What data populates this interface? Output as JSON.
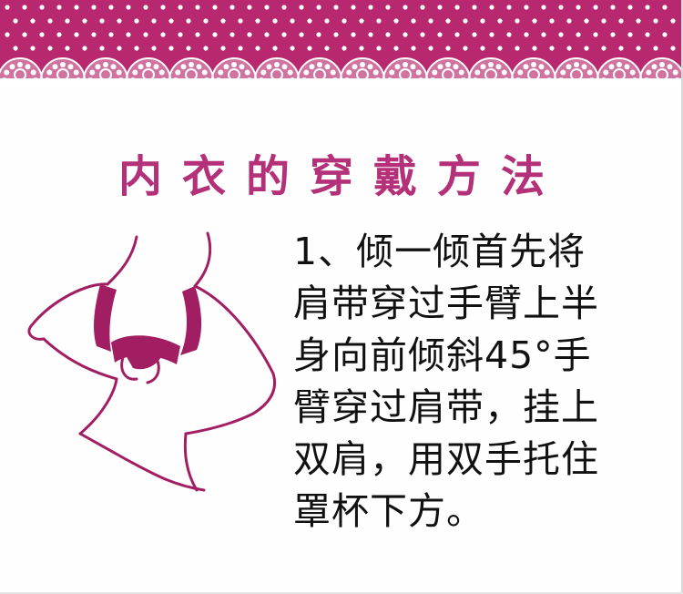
{
  "colors": {
    "banner": "#b8286f",
    "dots": "#ffffff",
    "lace": "#ffffff",
    "heading": "#b4317a",
    "illustration": "#a21e63",
    "body_text": "#111111"
  },
  "heading": {
    "title": "内衣的穿戴方法"
  },
  "content": {
    "step": "1、倾一倾首先将\n肩带穿过手臂上半\n身向前倾斜45°手\n臂穿过肩带，挂上\n双肩，用双手托住\n罩杯下方。"
  },
  "icons": {
    "banner": "polka-dot-lace-banner",
    "illustration": "woman-putting-on-bra-illustration"
  }
}
